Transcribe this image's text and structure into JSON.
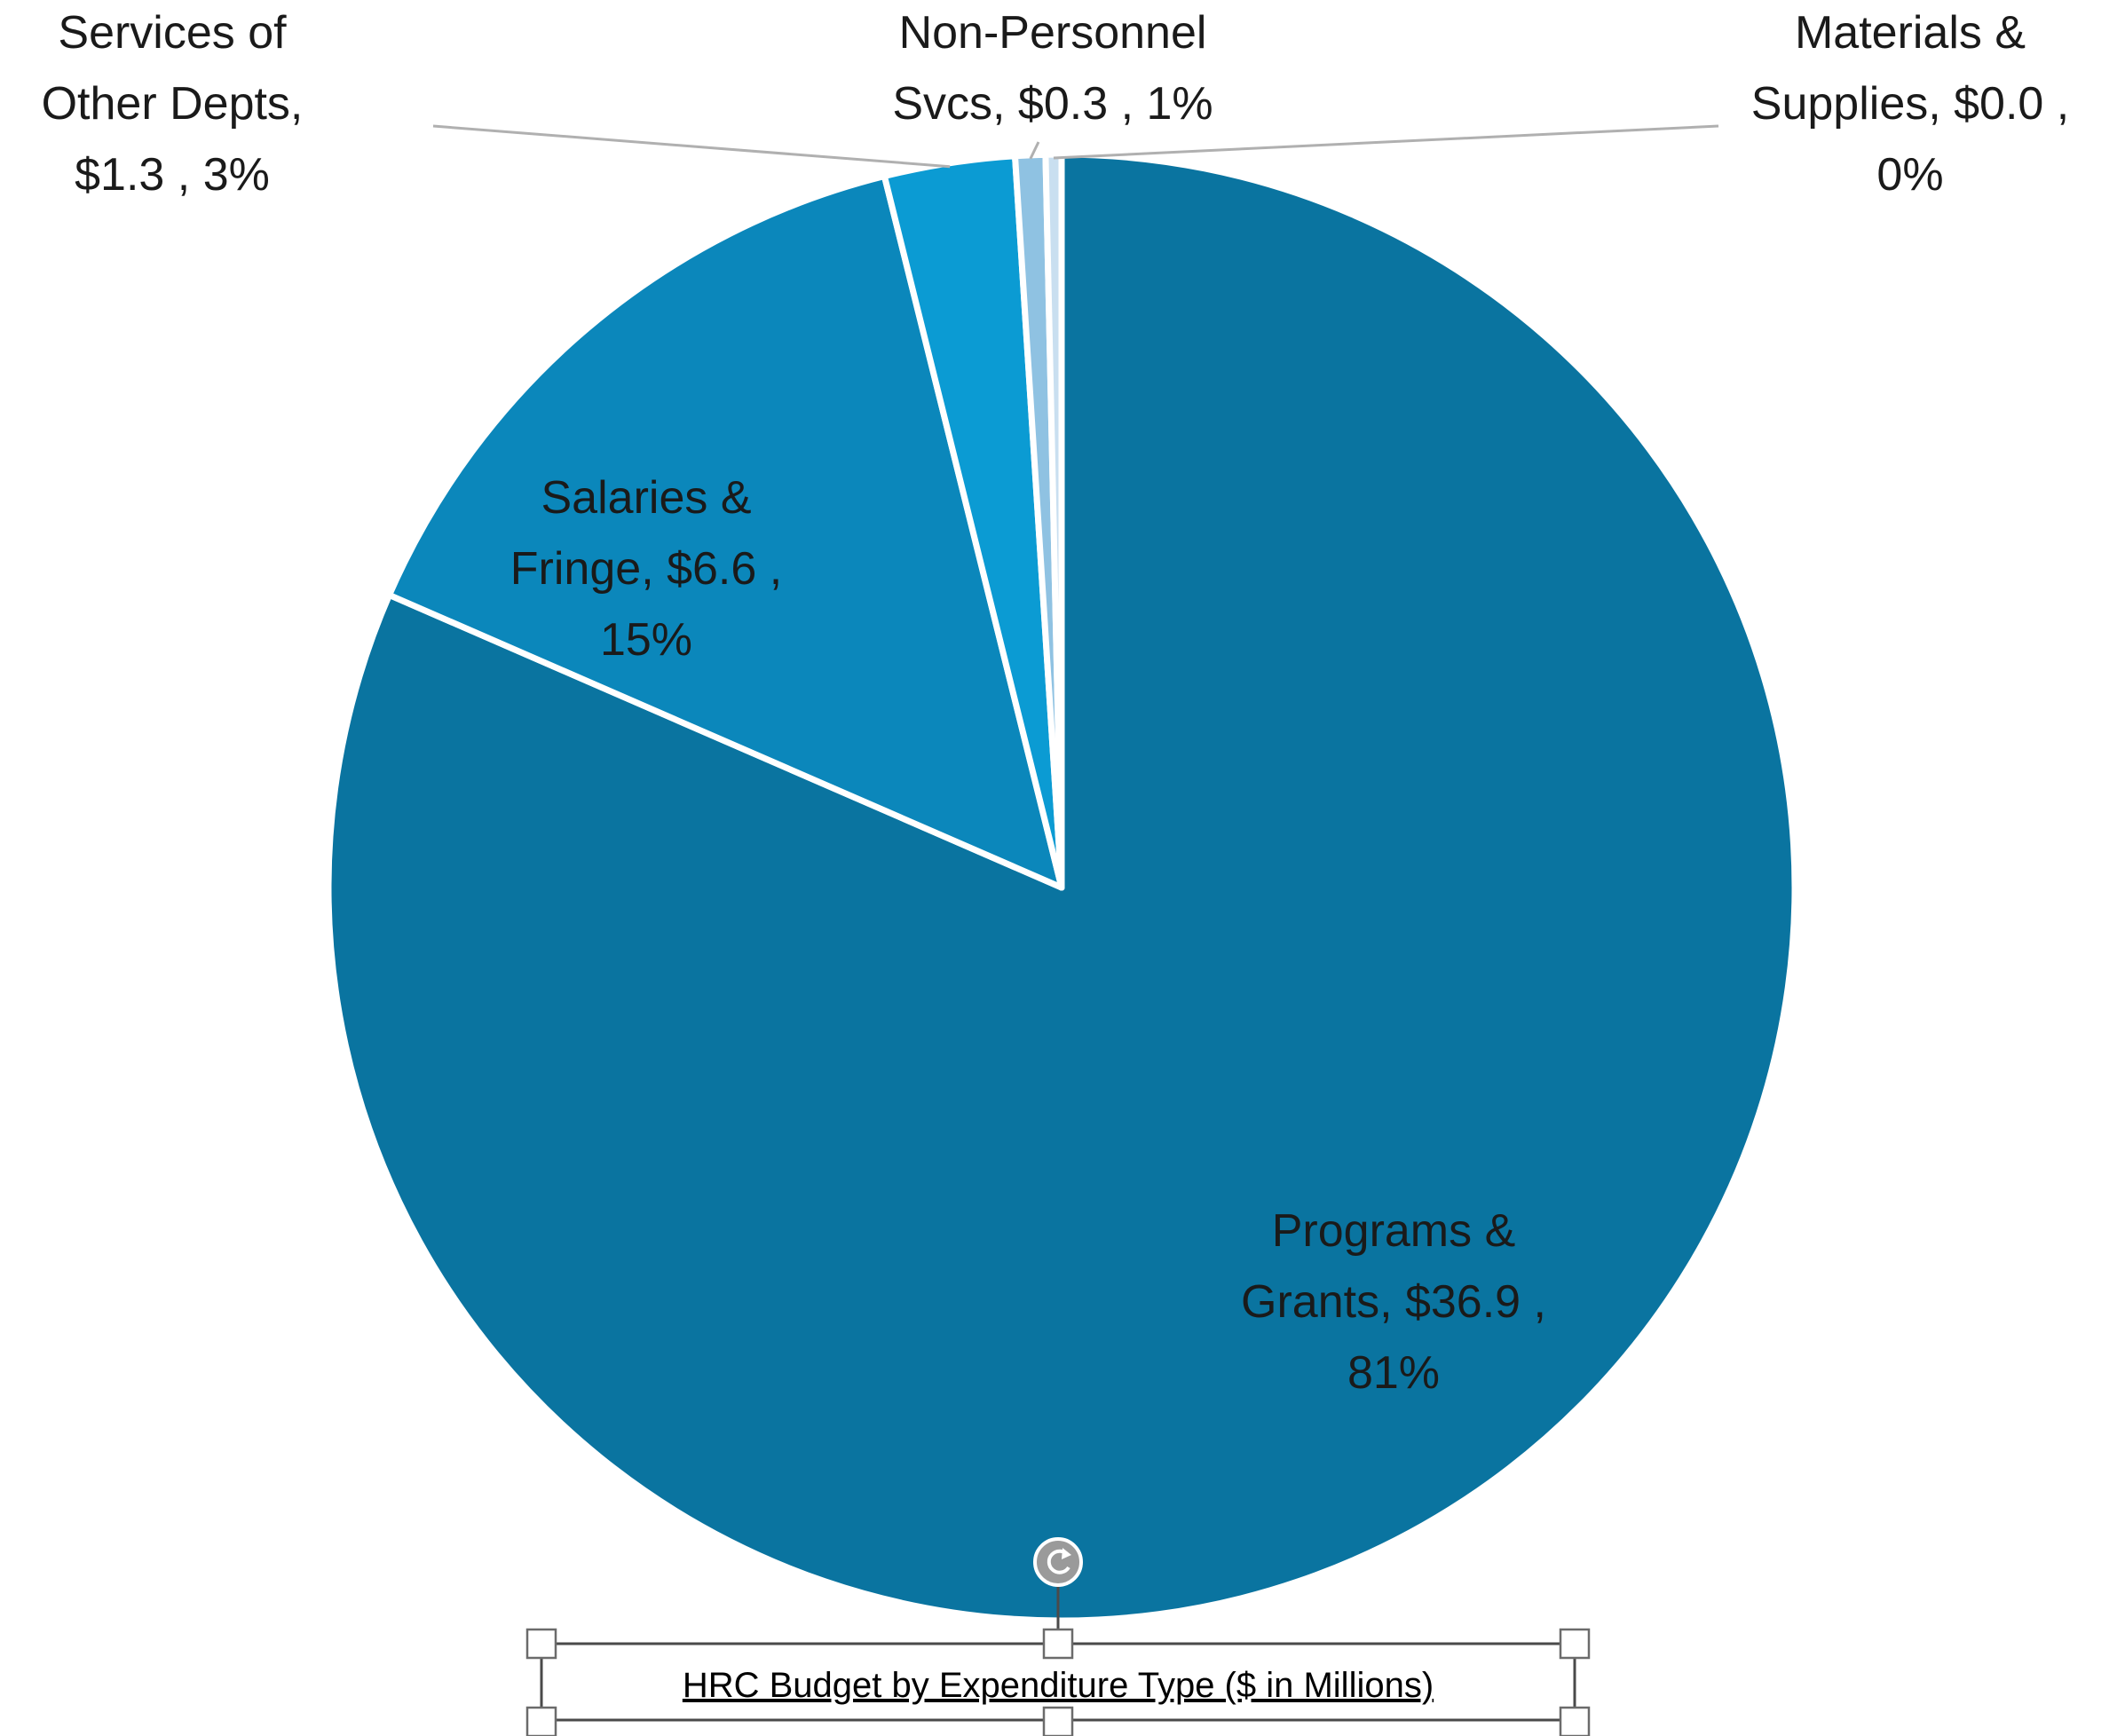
{
  "chart_data": {
    "type": "pie",
    "title": "HRC Budget by Expenditure Type ($ in Millions)",
    "slices": [
      {
        "label": "Programs & Grants",
        "value": 36.9,
        "value_label": "$36.9",
        "percent_label": "81%",
        "color": "#0a74a0"
      },
      {
        "label": "Salaries & Fringe",
        "value": 6.6,
        "value_label": "$6.6",
        "percent_label": "15%",
        "color": "#0b87bb"
      },
      {
        "label": "Services of Other Depts",
        "value": 1.3,
        "value_label": "$1.3",
        "percent_label": "3%",
        "color": "#0b9bd3"
      },
      {
        "label": "Non-Personnel Svcs",
        "value": 0.3,
        "value_label": "$0.3",
        "percent_label": "1%",
        "color": "#8fc2e2"
      },
      {
        "label": "Materials & Supplies",
        "value": 0.0,
        "value_label": "$0.0",
        "percent_label": "0%",
        "color": "#c9dff0"
      }
    ],
    "label_lines": [
      [
        "Programs &",
        "Grants, $36.9 ,",
        "81%"
      ],
      [
        "Salaries &",
        "Fringe, $6.6 ,",
        "15%"
      ],
      [
        "Services of",
        "Other Depts,",
        "$1.3 , 3%"
      ],
      [
        "Non-Personnel",
        "Svcs, $0.3 , 1%"
      ],
      [
        "Materials &",
        "Supplies, $0.0 ,",
        "0%"
      ]
    ],
    "legend": "none"
  },
  "selection": {
    "rotate_icon": "rotate-icon"
  }
}
